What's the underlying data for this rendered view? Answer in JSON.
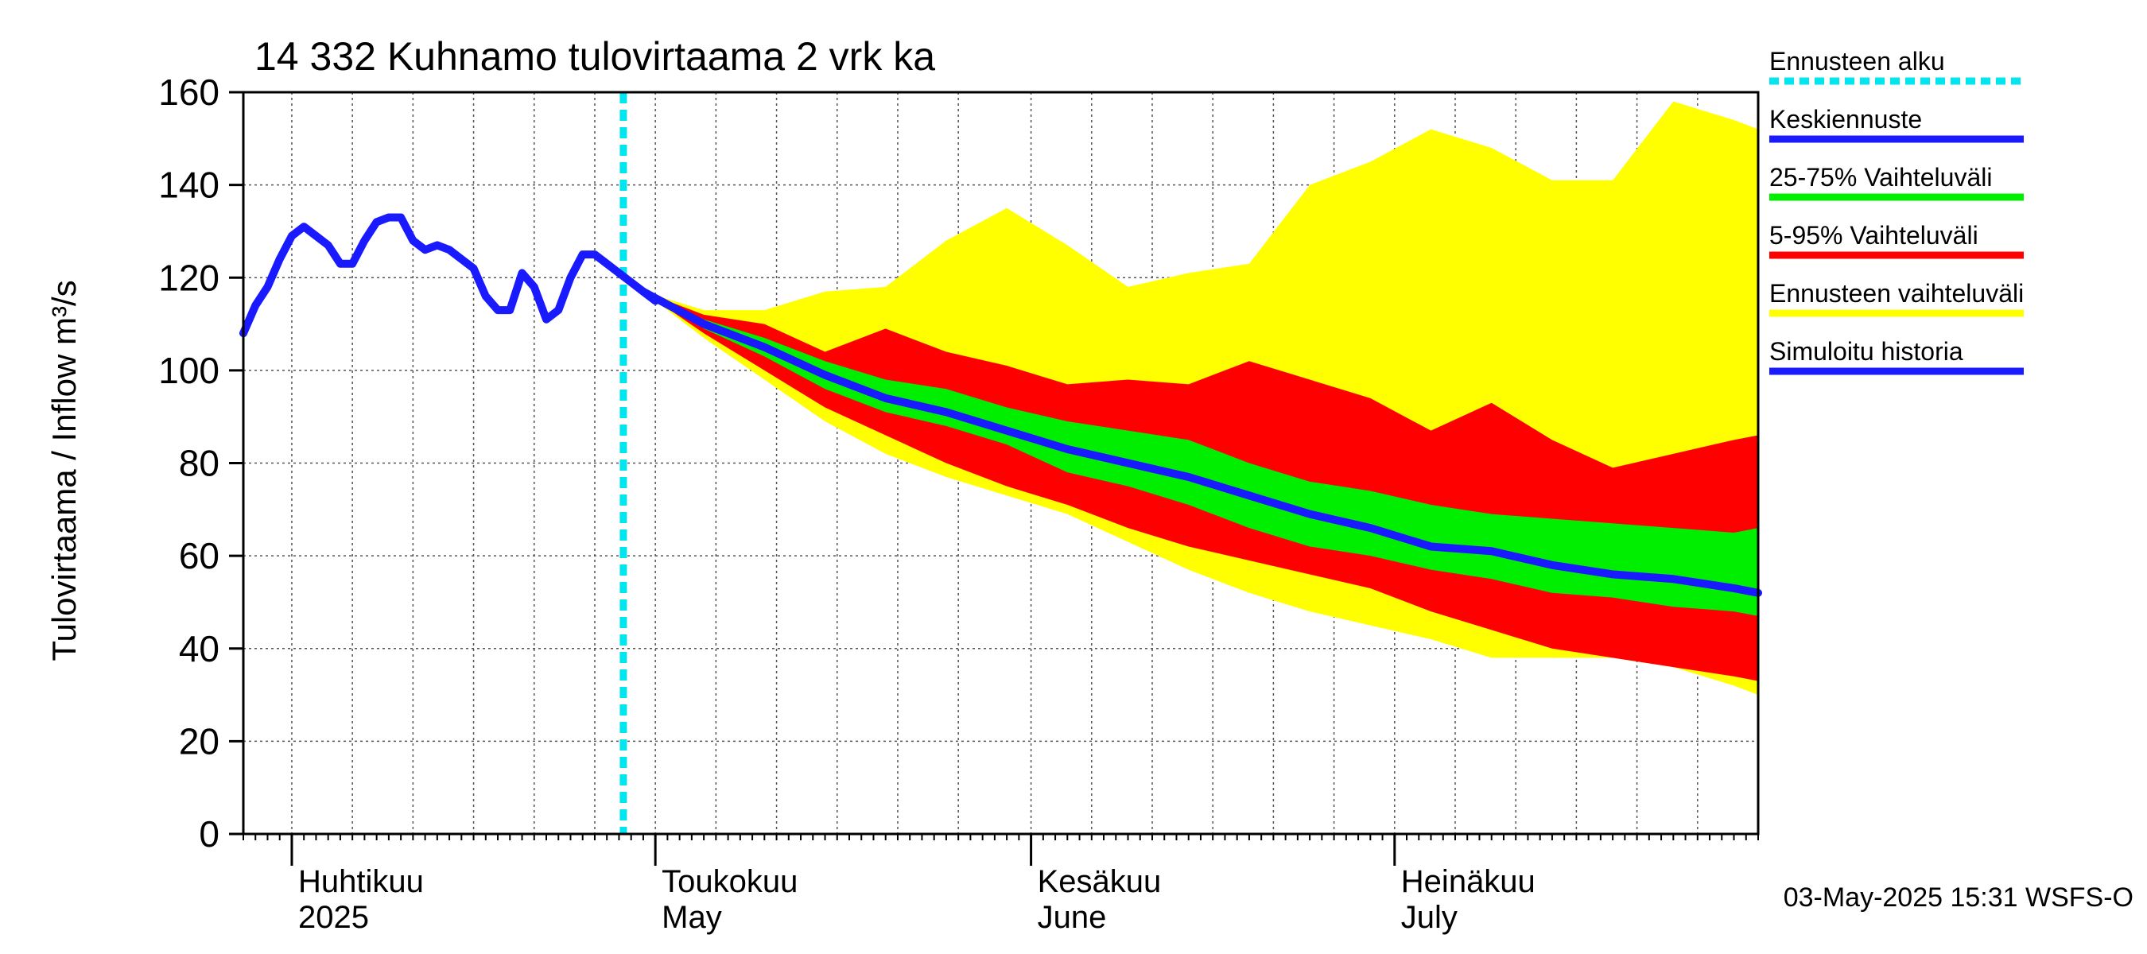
{
  "chart_data": {
    "type": "area",
    "title": "14 332 Kuhnamo tulovirtaama 2 vrk ka",
    "ylabel": "Tulovirtaama / Inflow   m³/s",
    "xlabel": "",
    "ylim": [
      0,
      160
    ],
    "yticks": [
      0,
      20,
      40,
      60,
      80,
      100,
      120,
      140,
      160
    ],
    "xlim": [
      "2025-03-28",
      "2025-07-31"
    ],
    "month_labels": [
      {
        "fi": "Huhtikuu",
        "en": "2025",
        "date": "2025-04-01"
      },
      {
        "fi": "Toukokuu",
        "en": "May",
        "date": "2025-05-01"
      },
      {
        "fi": "Kesäkuu",
        "en": "June",
        "date": "2025-06-01"
      },
      {
        "fi": "Heinäkuu",
        "en": "July",
        "date": "2025-07-01"
      }
    ],
    "forecast_start": "2025-04-30",
    "grid": true,
    "legend_position": "right",
    "legend": [
      {
        "label": "Ennusteen alku",
        "color": "#00e5ee",
        "style": "dotted"
      },
      {
        "label": "Keskiennuste",
        "color": "#1a1aff",
        "style": "line"
      },
      {
        "label": "25-75% Vaihteluväli",
        "color": "#00ee00",
        "style": "line"
      },
      {
        "label": "5-95% Vaihteluväli",
        "color": "#ff0000",
        "style": "line"
      },
      {
        "label": "Ennusteen vaihteluväli",
        "color": "#ffff00",
        "style": "line"
      },
      {
        "label": "Simuloitu historia",
        "color": "#1a1aff",
        "style": "line"
      }
    ],
    "history": {
      "name": "Simuloitu historia",
      "x": [
        "2025-03-28",
        "2025-03-29",
        "2025-03-30",
        "2025-03-31",
        "2025-04-01",
        "2025-04-02",
        "2025-04-03",
        "2025-04-04",
        "2025-04-05",
        "2025-04-06",
        "2025-04-07",
        "2025-04-08",
        "2025-04-09",
        "2025-04-10",
        "2025-04-11",
        "2025-04-12",
        "2025-04-13",
        "2025-04-14",
        "2025-04-15",
        "2025-04-16",
        "2025-04-17",
        "2025-04-18",
        "2025-04-19",
        "2025-04-20",
        "2025-04-21",
        "2025-04-22",
        "2025-04-23",
        "2025-04-24",
        "2025-04-25",
        "2025-04-26",
        "2025-04-27",
        "2025-04-28",
        "2025-04-29",
        "2025-04-30",
        "2025-05-01"
      ],
      "y": [
        108,
        114,
        118,
        124,
        129,
        131,
        129,
        127,
        123,
        123,
        128,
        132,
        133,
        133,
        128,
        126,
        127,
        126,
        124,
        122,
        116,
        113,
        113,
        121,
        118,
        111,
        113,
        120,
        125,
        125,
        123,
        121,
        119,
        117,
        115
      ]
    },
    "forecast": {
      "x": [
        "2025-04-30",
        "2025-05-05",
        "2025-05-10",
        "2025-05-15",
        "2025-05-20",
        "2025-05-25",
        "2025-05-30",
        "2025-06-04",
        "2025-06-09",
        "2025-06-14",
        "2025-06-19",
        "2025-06-24",
        "2025-06-29",
        "2025-07-04",
        "2025-07-09",
        "2025-07-14",
        "2025-07-19",
        "2025-07-24",
        "2025-07-29",
        "2025-07-31"
      ],
      "median": [
        117,
        110,
        105,
        99,
        94,
        91,
        87,
        83,
        80,
        77,
        73,
        69,
        66,
        62,
        61,
        58,
        56,
        55,
        53,
        52
      ],
      "p25": [
        117,
        109,
        103,
        96,
        91,
        88,
        84,
        78,
        75,
        71,
        66,
        62,
        60,
        57,
        55,
        52,
        51,
        49,
        48,
        47
      ],
      "p75": [
        117,
        111,
        107,
        102,
        98,
        96,
        92,
        89,
        87,
        85,
        80,
        76,
        74,
        71,
        69,
        68,
        67,
        66,
        65,
        66
      ],
      "p5": [
        117,
        108,
        100,
        92,
        86,
        80,
        75,
        71,
        66,
        62,
        59,
        56,
        53,
        48,
        44,
        40,
        38,
        36,
        34,
        33
      ],
      "p95": [
        117,
        112,
        110,
        104,
        109,
        104,
        101,
        97,
        98,
        97,
        102,
        98,
        94,
        87,
        93,
        85,
        79,
        82,
        85,
        86
      ],
      "min": [
        117,
        107,
        98,
        89,
        82,
        77,
        73,
        69,
        63,
        57,
        52,
        48,
        45,
        42,
        38,
        38,
        38,
        36,
        32,
        30
      ],
      "max": [
        117,
        113,
        113,
        117,
        118,
        128,
        135,
        127,
        118,
        121,
        123,
        140,
        145,
        152,
        148,
        141,
        141,
        158,
        154,
        152
      ]
    }
  },
  "timestamp": "03-May-2025 15:31 WSFS-O"
}
